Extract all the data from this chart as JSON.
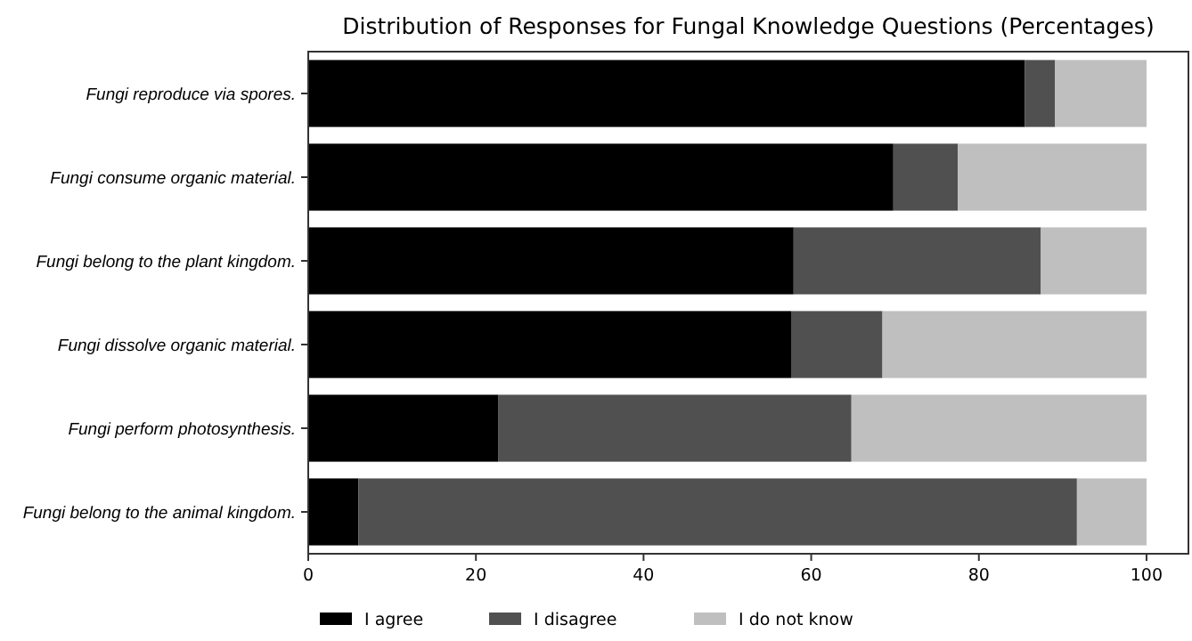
{
  "chart_data": {
    "type": "bar",
    "orientation": "horizontal",
    "stacked": true,
    "title": "Distribution of Responses for Fungal Knowledge Questions (Percentages)",
    "categories": [
      "Fungi reproduce via spores.",
      "Fungi consume organic material.",
      "Fungi belong to the plant kingdom.",
      "Fungi dissolve organic material.",
      "Fungi perform photosynthesis.",
      "Fungi belong to the animal kingdom."
    ],
    "series": [
      {
        "name": "I agree",
        "color": "#000000",
        "values": [
          85.5,
          69.8,
          57.9,
          57.6,
          22.7,
          6.0
        ]
      },
      {
        "name": "I disagree",
        "color": "#505050",
        "values": [
          3.6,
          7.7,
          29.5,
          10.9,
          42.1,
          85.7
        ]
      },
      {
        "name": "I do not know",
        "color": "#bfbfbf",
        "values": [
          10.9,
          22.5,
          12.6,
          31.5,
          35.2,
          8.3
        ]
      }
    ],
    "xlim": [
      0,
      105
    ],
    "xticks": [
      0,
      20,
      40,
      60,
      80,
      100
    ],
    "grid": false,
    "legend": "bottom"
  }
}
